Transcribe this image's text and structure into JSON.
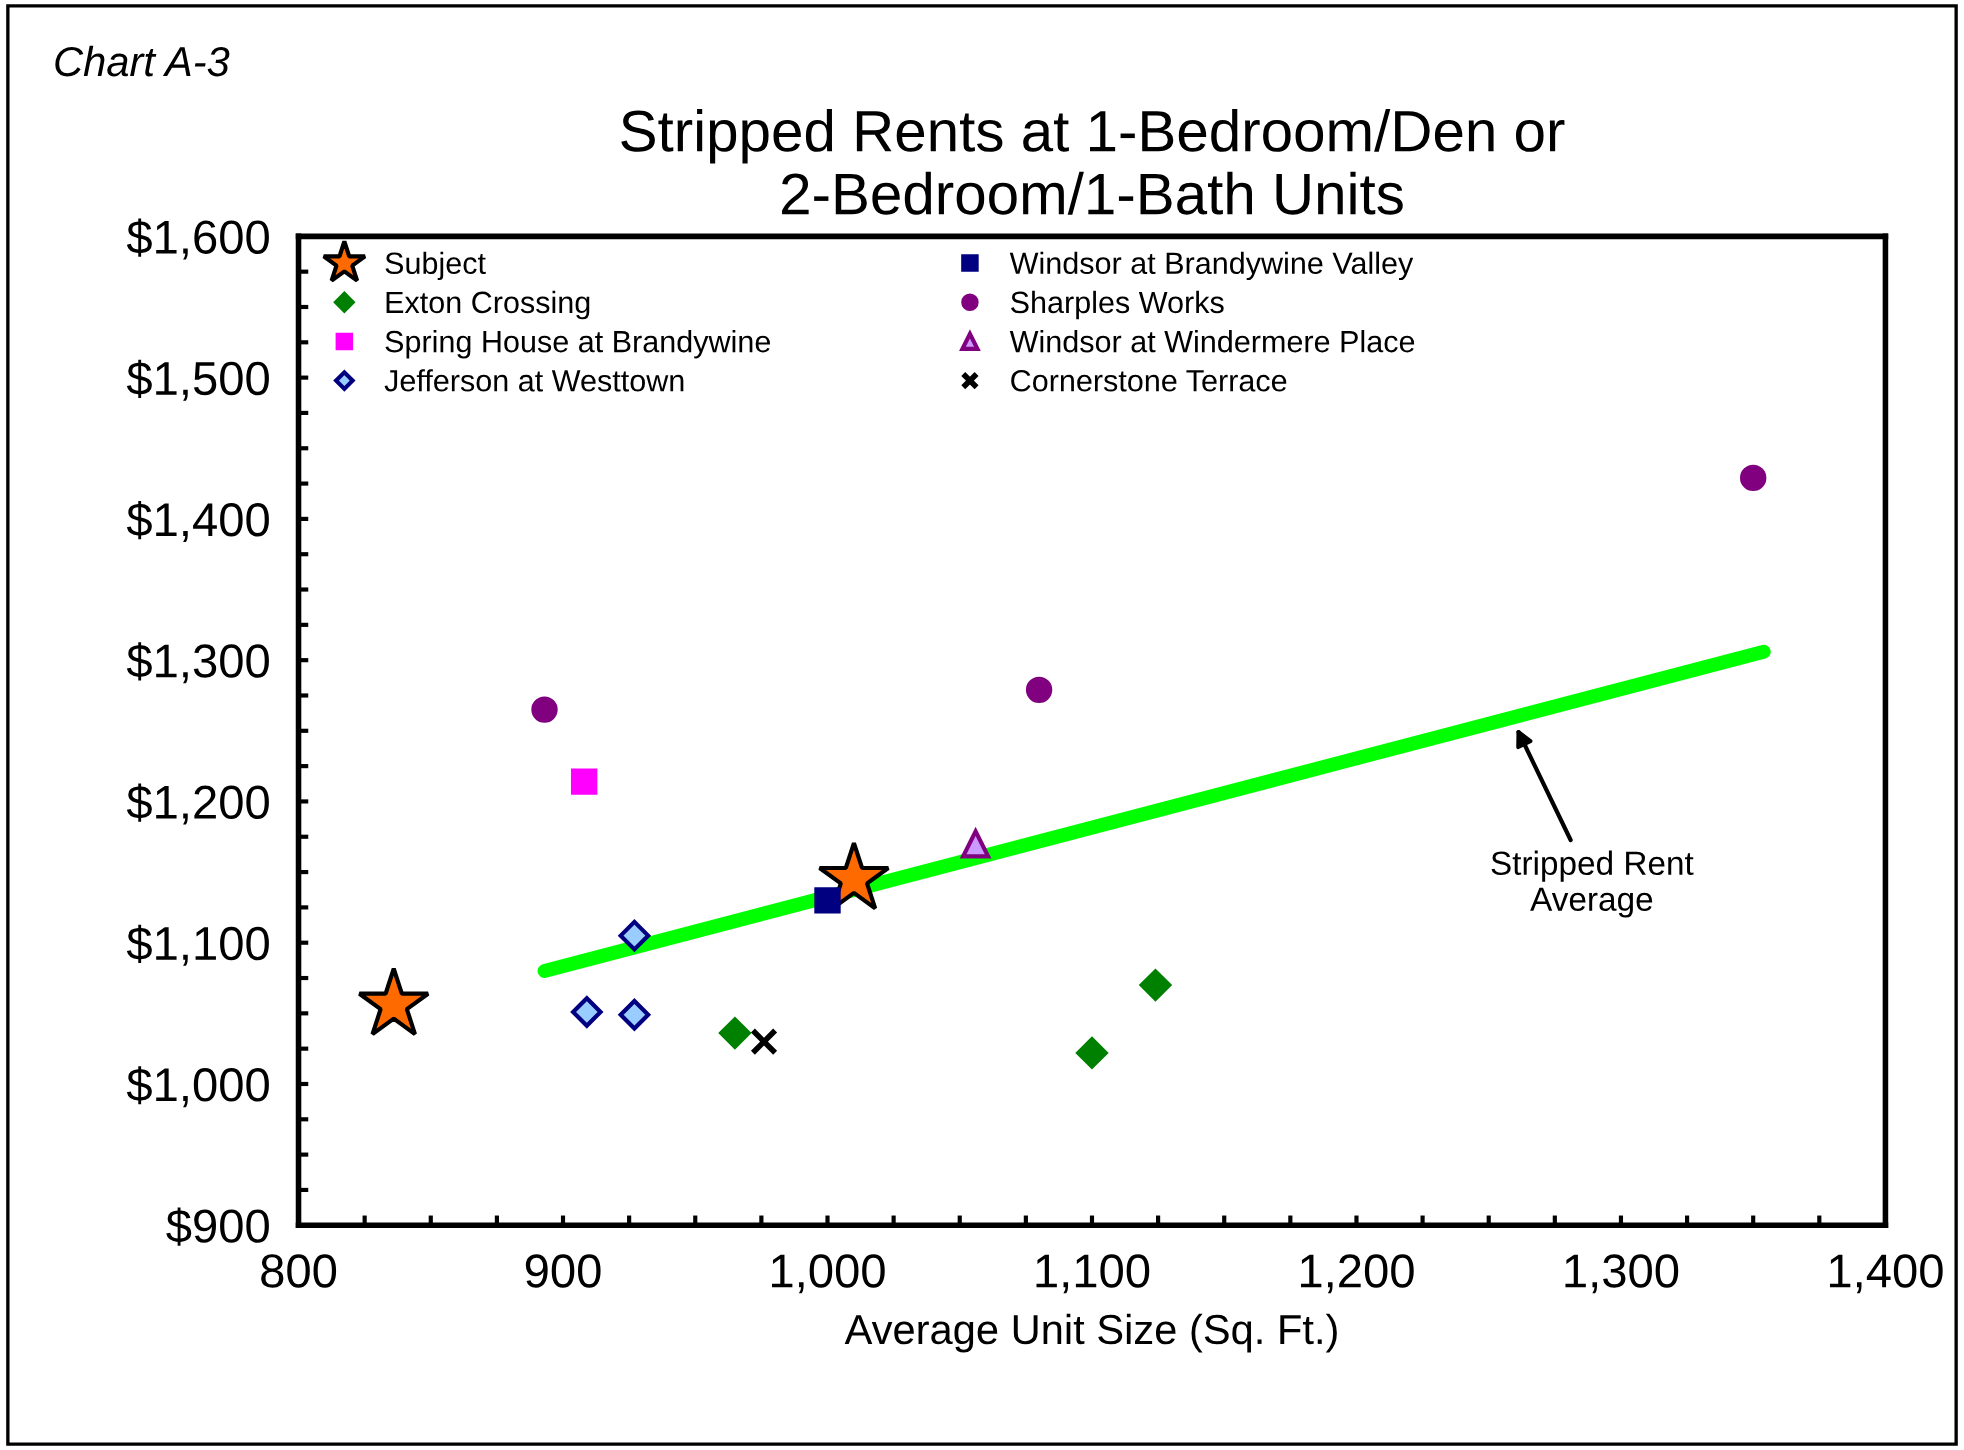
{
  "chart_data": {
    "type": "scatter",
    "title": "Stripped Rents at 1-Bedroom/Den or\n2-Bedroom/1-Bath Units",
    "xlabel": "Average Unit Size (Sq. Ft.)",
    "annotations": [
      "Chart A-3",
      "Stripped Rent\nAverage"
    ],
    "xlim": [
      800,
      1400
    ],
    "xticks": [
      {
        "value": 800,
        "label": "800"
      },
      {
        "value": 825,
        "label": null
      },
      {
        "value": 850,
        "label": null
      },
      {
        "value": 875,
        "label": null
      },
      {
        "value": 900,
        "label": "900"
      },
      {
        "value": 925,
        "label": null
      },
      {
        "value": 950,
        "label": null
      },
      {
        "value": 975,
        "label": null
      },
      {
        "value": 1000,
        "label": "1,000"
      },
      {
        "value": 1025,
        "label": null
      },
      {
        "value": 1050,
        "label": null
      },
      {
        "value": 1075,
        "label": null
      },
      {
        "value": 1100,
        "label": "1,100"
      },
      {
        "value": 1125,
        "label": null
      },
      {
        "value": 1150,
        "label": null
      },
      {
        "value": 1175,
        "label": null
      },
      {
        "value": 1200,
        "label": "1,200"
      },
      {
        "value": 1225,
        "label": null
      },
      {
        "value": 1250,
        "label": null
      },
      {
        "value": 1275,
        "label": null
      },
      {
        "value": 1300,
        "label": "1,300"
      },
      {
        "value": 1325,
        "label": null
      },
      {
        "value": 1350,
        "label": null
      },
      {
        "value": 1375,
        "label": null
      },
      {
        "value": 1400,
        "label": "1,400"
      }
    ],
    "ylim": [
      900,
      1600
    ],
    "yticks": [
      {
        "value": 900,
        "label": "$900"
      },
      {
        "value": 925,
        "label": null
      },
      {
        "value": 950,
        "label": null
      },
      {
        "value": 975,
        "label": null
      },
      {
        "value": 1000,
        "label": "$1,000"
      },
      {
        "value": 1025,
        "label": null
      },
      {
        "value": 1050,
        "label": null
      },
      {
        "value": 1075,
        "label": null
      },
      {
        "value": 1100,
        "label": "$1,100"
      },
      {
        "value": 1125,
        "label": null
      },
      {
        "value": 1150,
        "label": null
      },
      {
        "value": 1175,
        "label": null
      },
      {
        "value": 1200,
        "label": "$1,200"
      },
      {
        "value": 1225,
        "label": null
      },
      {
        "value": 1250,
        "label": null
      },
      {
        "value": 1275,
        "label": null
      },
      {
        "value": 1300,
        "label": "$1,300"
      },
      {
        "value": 1325,
        "label": null
      },
      {
        "value": 1350,
        "label": null
      },
      {
        "value": 1375,
        "label": null
      },
      {
        "value": 1400,
        "label": "$1,400"
      },
      {
        "value": 1425,
        "label": null
      },
      {
        "value": 1450,
        "label": null
      },
      {
        "value": 1475,
        "label": null
      },
      {
        "value": 1500,
        "label": "$1,500"
      },
      {
        "value": 1525,
        "label": null
      },
      {
        "value": 1550,
        "label": null
      },
      {
        "value": 1575,
        "label": null
      },
      {
        "value": 1600,
        "label": "$1,600"
      }
    ],
    "grid": false,
    "legend": "top left",
    "series": [
      {
        "name": "Subject",
        "color": "#ff6a00",
        "marker": "star",
        "x": [
          836,
          1010
        ],
        "values": [
          1056,
          1145
        ]
      },
      {
        "name": "Exton Crossing",
        "color": "#008000",
        "marker": "diamond",
        "x": [
          965,
          1100,
          1124
        ],
        "values": [
          1036,
          1022,
          1070
        ]
      },
      {
        "name": "Spring House at Brandywine",
        "color": "#ff00ff",
        "marker": "square",
        "x": [
          908
        ],
        "values": [
          1214
        ]
      },
      {
        "name": "Jefferson at Westtown",
        "color": "#99ccff",
        "marker": "diamond",
        "x": [
          927,
          909,
          927
        ],
        "values": [
          1105,
          1051,
          1049
        ]
      },
      {
        "name": "Windsor at Brandywine Valley",
        "color": "#000080",
        "marker": "square",
        "x": [
          1000
        ],
        "values": [
          1130
        ]
      },
      {
        "name": "Sharples Works",
        "color": "#800080",
        "marker": "circle",
        "x": [
          893,
          1080,
          1350
        ],
        "values": [
          1265,
          1279,
          1429
        ]
      },
      {
        "name": "Windsor at Windermere Place",
        "color": "#cc99ff",
        "marker": "triangle",
        "x": [
          1056
        ],
        "values": [
          1170
        ]
      },
      {
        "name": "Cornerstone Terrace",
        "color": "#000000",
        "marker": "cross",
        "x": [
          976
        ],
        "values": [
          1030
        ]
      },
      {
        "type": "line",
        "color": "#00ff00",
        "marker": "none",
        "x": [
          893,
          1354
        ],
        "values": [
          1080,
          1306
        ]
      }
    ]
  }
}
